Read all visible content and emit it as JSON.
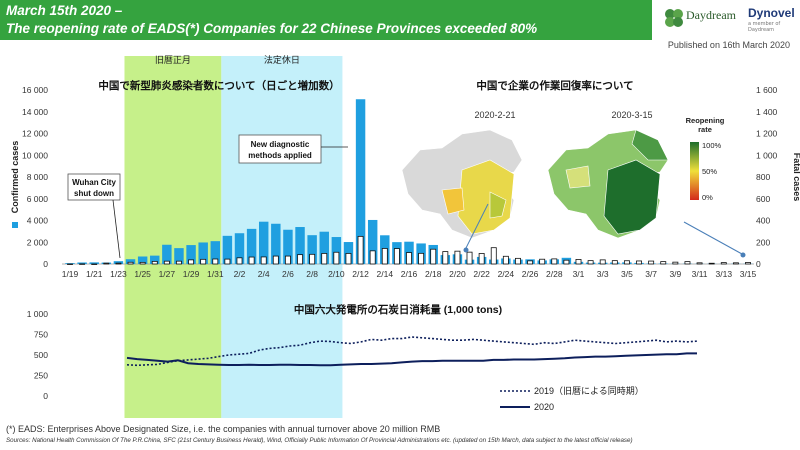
{
  "header": {
    "line1": "March 15th 2020 –",
    "line2": "The reopening rate of EADS(*) Companies for 22 Chinese Provinces exceeded 80%",
    "published": "Published on 16th March 2020"
  },
  "logos": {
    "daydream": "Daydream",
    "dynovel": "Dynovel",
    "dynovel_sub": "a member of Daydream"
  },
  "colors": {
    "header_green": "#35a33f",
    "bar_blue": "#1f9fe0",
    "fatal_bar": "#ffffff",
    "cny_band": "#c6f08a",
    "holiday_band": "#c4f0fa",
    "line_2020": "#0d1f5c",
    "line_2019": "#0d1f5c",
    "map_dark": "#1e6e2c",
    "map_mid": "#f0e03a",
    "map_low": "#d42a1a"
  },
  "bands": {
    "cny": "旧暦正月",
    "holiday": "法定休日"
  },
  "annotations": {
    "wuhan": "Wuhan City shut down",
    "diagnostic": "New diagnostic methods applied"
  },
  "legend_2019": "2019（旧暦による同時期）",
  "legend_2020": "2020",
  "footnote": "(*) EADS: Enterprises Above Designated Size, i.e. the companies with annual turnover above 20 million RMB",
  "sources": "Sources: National Health Commission Of The P.R.China, SFC (21st Century Business Herald), Wind, Officially Public Information Of Provincial Administrations etc. (updated on 15th March, data subject to the latest official release)",
  "map": {
    "title": "中国で企業の作業回復率について",
    "date_a": "2020-2-21",
    "date_b": "2020-3-15",
    "scale_title": "Reopening rate",
    "scale_labels": [
      "100%",
      "50%",
      "0%"
    ]
  },
  "chart_data": [
    {
      "type": "bar",
      "title": "中国で新型肺炎感染者数について（日ごと増加数）",
      "ylabel": "Confirmed cases",
      "y2label": "Fatal cases",
      "ylim": [
        0,
        16000
      ],
      "y2lim": [
        0,
        1600
      ],
      "yticks": [
        "0",
        "2 000",
        "4 000",
        "6 000",
        "8 000",
        "10 000",
        "12 000",
        "14 000",
        "16 000"
      ],
      "y2ticks": [
        "0",
        "200",
        "400",
        "600",
        "800",
        "1 000",
        "1 200",
        "1 400",
        "1 600"
      ],
      "xtick_labels": [
        "1/19",
        "1/21",
        "1/23",
        "1/25",
        "1/27",
        "1/29",
        "1/31",
        "2/2",
        "2/4",
        "2/6",
        "2/8",
        "2/10",
        "2/12",
        "2/14",
        "2/16",
        "2/18",
        "2/20",
        "2/22",
        "2/24",
        "2/26",
        "2/28",
        "3/1",
        "3/3",
        "3/5",
        "3/7",
        "3/9",
        "3/11",
        "3/13",
        "3/15"
      ],
      "categories": [
        "1/19",
        "1/20",
        "1/21",
        "1/22",
        "1/23",
        "1/24",
        "1/25",
        "1/26",
        "1/27",
        "1/28",
        "1/29",
        "1/30",
        "1/31",
        "2/1",
        "2/2",
        "2/3",
        "2/4",
        "2/5",
        "2/6",
        "2/7",
        "2/8",
        "2/9",
        "2/10",
        "2/11",
        "2/12",
        "2/13",
        "2/14",
        "2/15",
        "2/16",
        "2/17",
        "2/18",
        "2/19",
        "2/20",
        "2/21",
        "2/22",
        "2/23",
        "2/24",
        "2/25",
        "2/26",
        "2/27",
        "2/28",
        "2/29",
        "3/1",
        "3/2",
        "3/3",
        "3/4",
        "3/5",
        "3/6",
        "3/7",
        "3/8",
        "3/9",
        "3/10",
        "3/11",
        "3/12",
        "3/13",
        "3/14",
        "3/15"
      ],
      "series": [
        {
          "name": "Confirmed cases",
          "axis": "left",
          "values": [
            80,
            140,
            150,
            130,
            260,
            440,
            690,
            770,
            1770,
            1460,
            1740,
            1980,
            2100,
            2590,
            2830,
            3230,
            3890,
            3700,
            3150,
            3400,
            2650,
            2970,
            2480,
            2020,
            15150,
            4050,
            2640,
            2010,
            2050,
            1890,
            1750,
            820,
            890,
            400,
            650,
            410,
            510,
            410,
            430,
            330,
            430,
            570,
            200,
            130,
            120,
            140,
            150,
            100,
            45,
            40,
            20,
            25,
            15,
            15,
            10,
            20,
            20
          ]
        },
        {
          "name": "Fatal cases",
          "axis": "right",
          "values": [
            0,
            1,
            0,
            8,
            8,
            16,
            15,
            24,
            26,
            26,
            38,
            43,
            46,
            45,
            57,
            64,
            65,
            73,
            73,
            86,
            89,
            97,
            108,
            97,
            254,
            121,
            143,
            142,
            105,
            98,
            136,
            114,
            118,
            109,
            97,
            150,
            71,
            52,
            29,
            44,
            47,
            35,
            42,
            31,
            38,
            31,
            30,
            28,
            27,
            22,
            17,
            22,
            11,
            7,
            13,
            11,
            14
          ]
        }
      ]
    },
    {
      "type": "line",
      "title": "中国六大発電所の石炭日消耗量 (1,000 tons)",
      "ylim": [
        0,
        1000
      ],
      "yticks": [
        "0",
        "250",
        "500",
        "750",
        "1 000"
      ],
      "series": [
        {
          "name": "2019（旧暦による同時期）",
          "values": [
            380,
            375,
            380,
            385,
            410,
            430,
            440,
            450,
            460,
            480,
            500,
            510,
            520,
            560,
            580,
            590,
            610,
            620,
            650,
            670,
            665,
            650,
            640,
            660,
            690,
            680,
            700,
            700,
            720,
            710,
            700,
            690,
            680,
            680,
            690,
            680,
            670,
            660,
            650,
            640,
            630,
            650,
            640,
            660,
            680,
            670,
            660,
            650,
            640,
            650,
            660,
            670,
            680,
            660,
            670,
            660,
            670
          ]
        },
        {
          "name": "2020",
          "values": [
            465,
            450,
            440,
            430,
            420,
            435,
            400,
            390,
            385,
            380,
            378,
            378,
            380,
            378,
            378,
            380,
            380,
            378,
            378,
            375,
            375,
            380,
            385,
            390,
            390,
            395,
            400,
            410,
            420,
            425,
            425,
            430,
            430,
            430,
            430,
            430,
            440,
            440,
            445,
            445,
            445,
            450,
            455,
            460,
            470,
            475,
            480,
            480,
            485,
            490,
            495,
            500,
            505,
            510,
            510,
            520,
            520
          ]
        }
      ]
    }
  ]
}
